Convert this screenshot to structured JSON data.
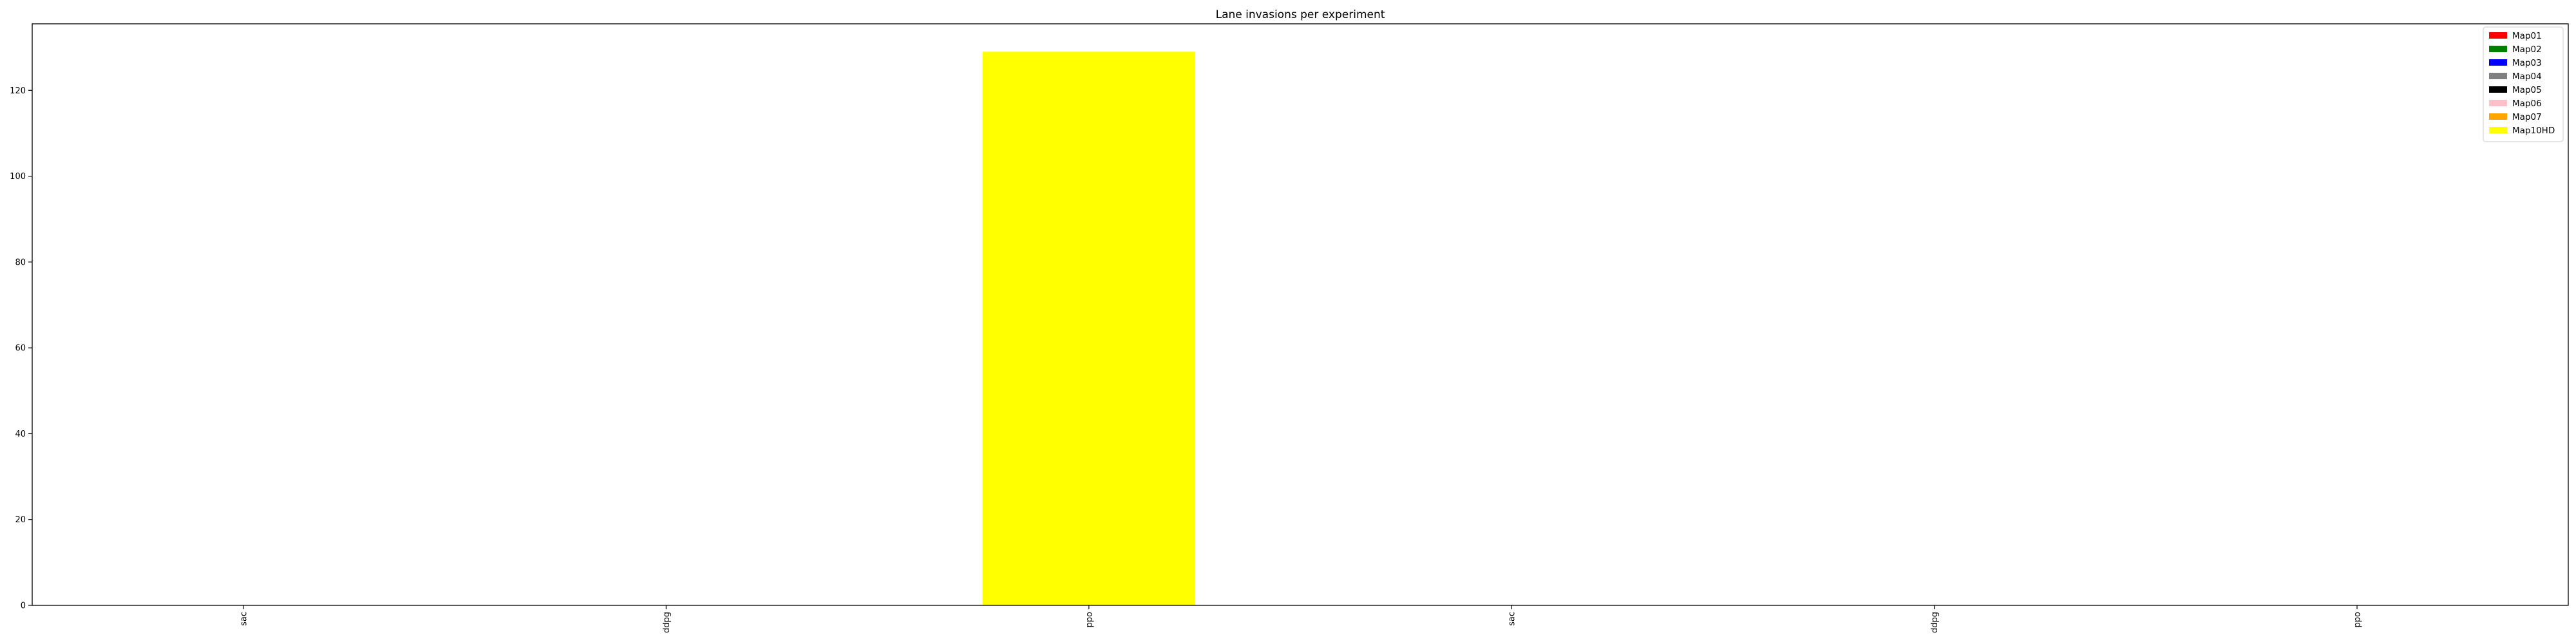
{
  "chart_data": {
    "type": "bar",
    "title": "Lane invasions per experiment",
    "xlabel": "",
    "ylabel": "",
    "categories": [
      "sac",
      "ddpg",
      "ppo",
      "sac",
      "ddpg",
      "ppo"
    ],
    "series": [
      {
        "name": "Map01",
        "color": "#ff0000",
        "values": [
          0,
          0,
          0,
          0,
          0,
          0
        ]
      },
      {
        "name": "Map02",
        "color": "#008000",
        "values": [
          0,
          0,
          0,
          0,
          0,
          0
        ]
      },
      {
        "name": "Map03",
        "color": "#0000ff",
        "values": [
          0,
          0,
          0,
          0,
          0,
          0
        ]
      },
      {
        "name": "Map04",
        "color": "#808080",
        "values": [
          0,
          0,
          0,
          0,
          0,
          0
        ]
      },
      {
        "name": "Map05",
        "color": "#000000",
        "values": [
          0,
          0,
          0,
          0,
          0,
          0
        ]
      },
      {
        "name": "Map06",
        "color": "#ffc0cb",
        "values": [
          0,
          0,
          0,
          0,
          0,
          0
        ]
      },
      {
        "name": "Map07",
        "color": "#ffa500",
        "values": [
          0,
          0,
          0,
          0,
          0,
          0
        ]
      },
      {
        "name": "Map10HD",
        "color": "#ffff00",
        "values": [
          0,
          0,
          129,
          0,
          0,
          0
        ]
      }
    ],
    "stacked": true,
    "ylim": [
      0,
      135.5
    ],
    "yticks": [
      0,
      20,
      40,
      60,
      80,
      100,
      120
    ],
    "legend": "top-right",
    "grid": false
  }
}
